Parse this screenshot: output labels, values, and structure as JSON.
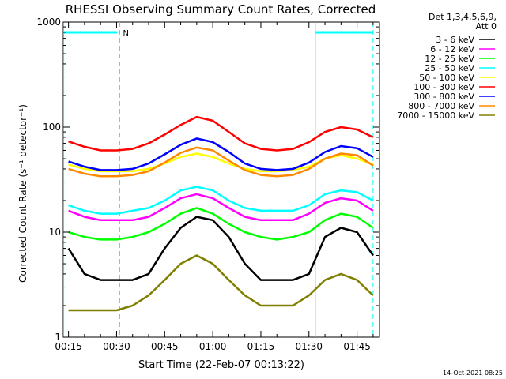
{
  "chart_data": {
    "type": "line",
    "title": "RHESSI Observing Summary Count Rates, Corrected",
    "xlabel": "Start Time (22-Feb-07 00:13:22)",
    "ylabel": "Corrected Count Rate (s⁻¹ detector⁻¹)",
    "y_scale": "log",
    "xlim": [
      "00:13:22",
      "01:52"
    ],
    "ylim": [
      1,
      1000
    ],
    "x_ticks": [
      "00:15",
      "00:30",
      "00:45",
      "01:00",
      "01:15",
      "01:30",
      "01:45"
    ],
    "y_ticks": [
      1,
      10,
      100,
      1000
    ],
    "y_tick_labels": [
      "1",
      "10",
      "100",
      "1000"
    ],
    "legend": {
      "position": "top-right",
      "header": [
        "Det 1,3,4,5,6,9,",
        "Att 0"
      ]
    },
    "night_marker": "N",
    "annotation_lines_times": [
      "00:13:30",
      "00:31",
      "01:32",
      "01:50"
    ],
    "time_samples": [
      "00:15",
      "00:20",
      "00:25",
      "00:30",
      "00:35",
      "00:40",
      "00:45",
      "00:50",
      "00:55",
      "01:00",
      "01:05",
      "01:10",
      "01:15",
      "01:20",
      "01:25",
      "01:30",
      "01:35",
      "01:40",
      "01:45",
      "01:50"
    ],
    "series": [
      {
        "name": "3 - 6 keV",
        "color": "#000000",
        "values": [
          7,
          4,
          3.5,
          3.5,
          3.5,
          4,
          7,
          11,
          14,
          13,
          9,
          5,
          3.5,
          3.5,
          3.5,
          4,
          9,
          11,
          10,
          6
        ]
      },
      {
        "name": "6 - 12 keV",
        "color": "#ff00ff",
        "values": [
          16,
          14,
          13,
          13,
          13,
          14,
          17,
          21,
          23,
          21,
          17,
          14,
          13,
          13,
          13,
          15,
          19,
          21,
          20,
          16
        ]
      },
      {
        "name": "12 - 25 keV",
        "color": "#00ff00",
        "values": [
          10,
          9,
          8.5,
          8.5,
          9,
          10,
          12,
          15,
          17,
          15,
          12,
          10,
          9,
          8.5,
          9,
          10,
          13,
          15,
          14,
          11
        ]
      },
      {
        "name": "25 - 50 keV",
        "color": "#00ffff",
        "values": [
          18,
          16,
          15,
          15,
          16,
          17,
          20,
          25,
          27,
          25,
          20,
          17,
          16,
          16,
          16,
          18,
          23,
          25,
          24,
          20
        ]
      },
      {
        "name": "50 - 100 keV",
        "color": "#ffff00",
        "values": [
          44,
          40,
          38,
          38,
          38,
          40,
          45,
          52,
          56,
          52,
          45,
          40,
          38,
          38,
          39,
          42,
          50,
          54,
          50,
          44
        ]
      },
      {
        "name": "100 - 300 keV",
        "color": "#ff0000",
        "values": [
          73,
          65,
          60,
          60,
          62,
          70,
          85,
          105,
          125,
          115,
          90,
          70,
          62,
          60,
          62,
          72,
          90,
          100,
          95,
          80
        ]
      },
      {
        "name": "300 - 800 keV",
        "color": "#0000ff",
        "values": [
          47,
          42,
          39,
          39,
          40,
          45,
          55,
          68,
          78,
          72,
          58,
          45,
          40,
          39,
          40,
          46,
          58,
          66,
          63,
          52
        ]
      },
      {
        "name": "800 - 7000 keV",
        "color": "#ff8800",
        "values": [
          40,
          36,
          34,
          34,
          35,
          38,
          46,
          57,
          64,
          60,
          48,
          39,
          35,
          34,
          35,
          40,
          50,
          56,
          54,
          43
        ]
      },
      {
        "name": "7000 - 15000 keV",
        "color": "#808000",
        "values": [
          1.8,
          1.8,
          1.8,
          1.8,
          2,
          2.5,
          3.5,
          5,
          6,
          5,
          3.5,
          2.5,
          2,
          2,
          2,
          2.5,
          3.5,
          4,
          3.5,
          2.5
        ]
      }
    ]
  },
  "footer": {
    "timestamp": "14-Oct-2021 08:25"
  }
}
